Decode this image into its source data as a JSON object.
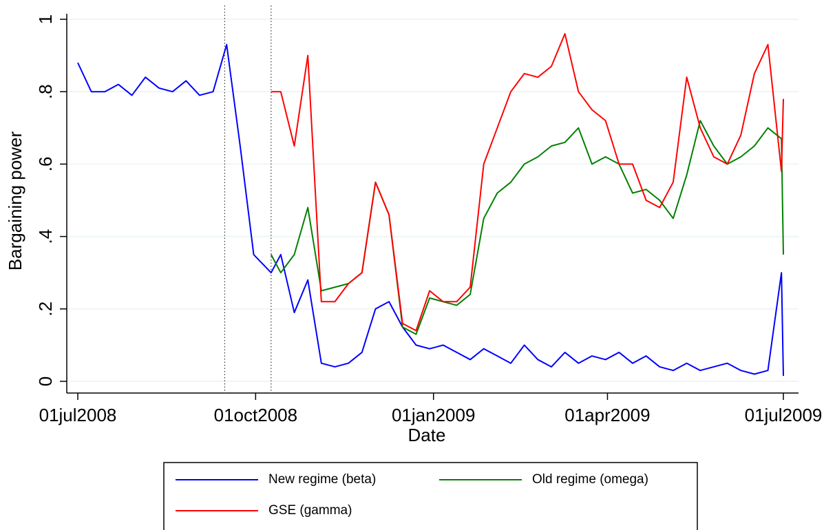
{
  "chart_data": {
    "type": "line",
    "x_label": "Date",
    "y_label": "Bargaining power",
    "x": [
      "2008-07-01",
      "2008-07-08",
      "2008-07-15",
      "2008-07-22",
      "2008-07-29",
      "2008-08-05",
      "2008-08-12",
      "2008-08-19",
      "2008-08-26",
      "2008-09-02",
      "2008-09-09",
      "2008-09-16",
      "2008-09-23",
      "2008-09-30",
      "2008-10-09",
      "2008-10-14",
      "2008-10-21",
      "2008-10-28",
      "2008-11-04",
      "2008-11-11",
      "2008-11-18",
      "2008-11-25",
      "2008-12-02",
      "2008-12-09",
      "2008-12-16",
      "2008-12-23",
      "2008-12-30",
      "2009-01-06",
      "2009-01-13",
      "2009-01-20",
      "2009-01-27",
      "2009-02-03",
      "2009-02-10",
      "2009-02-17",
      "2009-02-24",
      "2009-03-03",
      "2009-03-10",
      "2009-03-17",
      "2009-03-24",
      "2009-03-31",
      "2009-04-07",
      "2009-04-14",
      "2009-04-21",
      "2009-04-28",
      "2009-05-05",
      "2009-05-12",
      "2009-05-19",
      "2009-05-26",
      "2009-06-02",
      "2009-06-09",
      "2009-06-16",
      "2009-06-23",
      "2009-06-30",
      "2009-07-01"
    ],
    "series": [
      {
        "name": "New regime (beta)",
        "color": "#0000ff",
        "values": [
          0.88,
          0.8,
          0.8,
          0.82,
          0.79,
          0.84,
          0.81,
          0.8,
          0.83,
          0.79,
          0.8,
          0.93,
          0.65,
          0.35,
          0.3,
          0.35,
          0.19,
          0.28,
          0.05,
          0.04,
          0.05,
          0.08,
          0.2,
          0.22,
          0.15,
          0.1,
          0.09,
          0.1,
          0.08,
          0.06,
          0.09,
          0.07,
          0.05,
          0.1,
          0.06,
          0.04,
          0.08,
          0.05,
          0.07,
          0.06,
          0.08,
          0.05,
          0.07,
          0.04,
          0.03,
          0.05,
          0.03,
          0.04,
          0.05,
          0.03,
          0.02,
          0.03,
          0.3,
          0.015
        ]
      },
      {
        "name": "Old regime (omega)",
        "color": "#008000",
        "values": [
          null,
          null,
          null,
          null,
          null,
          null,
          null,
          null,
          null,
          null,
          null,
          null,
          null,
          null,
          0.35,
          0.3,
          0.35,
          0.48,
          0.25,
          0.26,
          0.27,
          0.3,
          0.55,
          0.46,
          0.15,
          0.13,
          0.23,
          0.22,
          0.21,
          0.24,
          0.45,
          0.52,
          0.55,
          0.6,
          0.62,
          0.65,
          0.66,
          0.7,
          0.6,
          0.62,
          0.6,
          0.52,
          0.53,
          0.5,
          0.45,
          0.57,
          0.72,
          0.65,
          0.6,
          0.62,
          0.65,
          0.7,
          0.67,
          0.35
        ]
      },
      {
        "name": "GSE (gamma)",
        "color": "#ff0000",
        "values": [
          null,
          null,
          null,
          null,
          null,
          null,
          null,
          null,
          null,
          null,
          null,
          null,
          null,
          null,
          0.8,
          0.8,
          0.65,
          0.9,
          0.22,
          0.22,
          0.27,
          0.3,
          0.55,
          0.46,
          0.16,
          0.14,
          0.25,
          0.22,
          0.22,
          0.26,
          0.6,
          0.7,
          0.8,
          0.85,
          0.84,
          0.87,
          0.96,
          0.8,
          0.75,
          0.72,
          0.6,
          0.6,
          0.5,
          0.48,
          0.55,
          0.84,
          0.7,
          0.62,
          0.6,
          0.68,
          0.85,
          0.93,
          0.58,
          0.78
        ]
      }
    ],
    "xlim": [
      "2008-07-01",
      "2009-07-01"
    ],
    "xticks": [
      {
        "value": "2008-07-01",
        "label": "01jul2008"
      },
      {
        "value": "2008-10-01",
        "label": "01oct2008"
      },
      {
        "value": "2009-01-01",
        "label": "01jan2009"
      },
      {
        "value": "2009-04-01",
        "label": "01apr2009"
      },
      {
        "value": "2009-07-01",
        "label": "01jul2009"
      }
    ],
    "ylim": [
      0,
      1
    ],
    "yticks": [
      0,
      {
        "value": 0.2,
        "label": ".2"
      },
      {
        "value": 0.4,
        "label": ".4"
      },
      {
        "value": 0.6,
        "label": ".6"
      },
      {
        "value": 0.8,
        "label": ".8"
      },
      1
    ],
    "vlines": [
      "2008-09-15",
      "2008-10-09"
    ],
    "grid": true,
    "legend": "bottom"
  }
}
